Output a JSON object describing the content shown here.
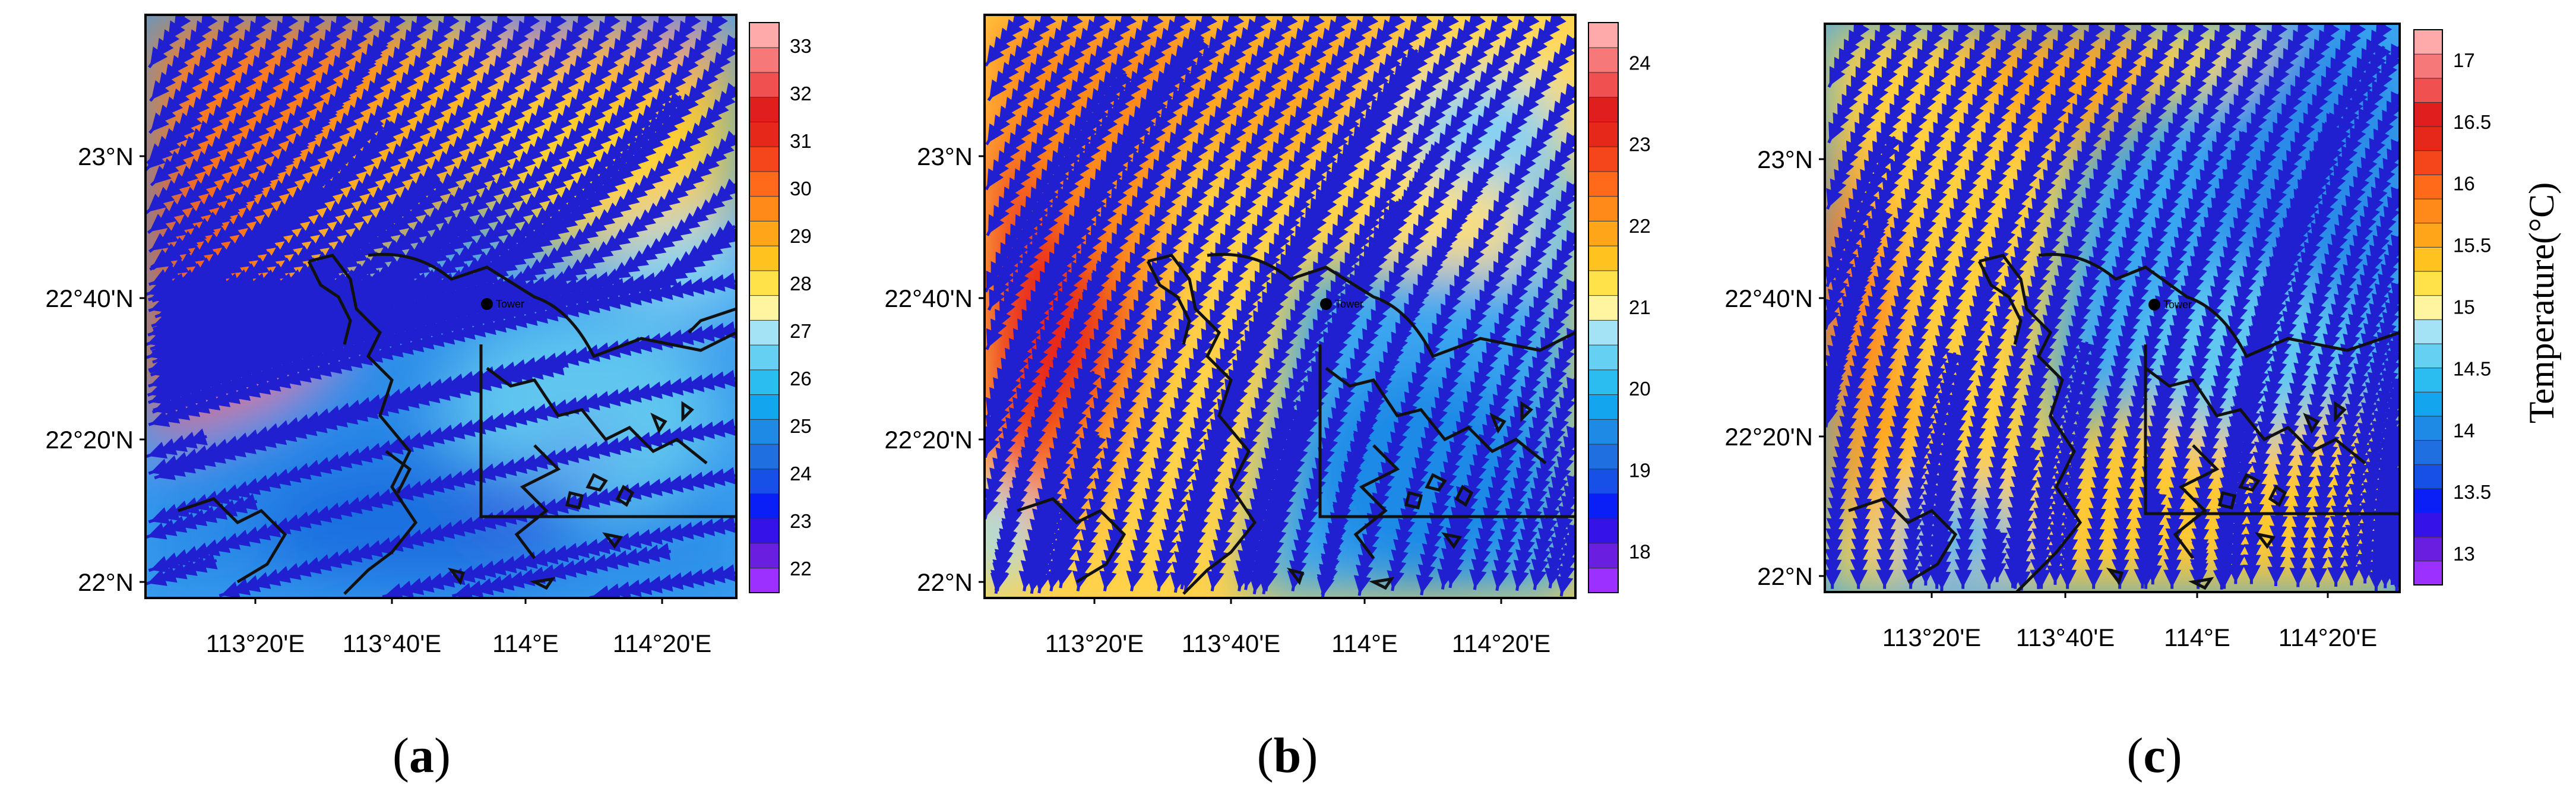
{
  "colorbar_title": "Temperature(°C)",
  "colormap": [
    "#9b30ff",
    "#6a1fe0",
    "#3512e8",
    "#0a1ff5",
    "#1650e6",
    "#1f6fe0",
    "#1f8ae6",
    "#13a6ef",
    "#2bbdf0",
    "#66d0f2",
    "#a3e3f5",
    "#fff5a0",
    "#ffe24a",
    "#ffc21f",
    "#ffa51a",
    "#ff8a1a",
    "#ff6a1a",
    "#f5451a",
    "#e6281a",
    "#e01e1e",
    "#f05050",
    "#f77878",
    "#ffaaaa"
  ],
  "panels": [
    {
      "label": "(a)",
      "letter": "a",
      "tower_label": "Tower",
      "lon_ticks": [
        "113°20'E",
        "113°40'E",
        "114°E",
        "114°20'E"
      ],
      "lat_ticks": [
        "23°N",
        "22°40'N",
        "22°20'N",
        "22°N"
      ],
      "colorbar_ticks": [
        "33",
        "32",
        "31",
        "30",
        "29",
        "28",
        "27",
        "26",
        "25",
        "24",
        "23",
        "22"
      ],
      "colorbar_range": [
        21.5,
        33.5
      ],
      "field": "a"
    },
    {
      "label": "(b)",
      "letter": "b",
      "tower_label": "Tower",
      "lon_ticks": [
        "113°20'E",
        "113°40'E",
        "114°E",
        "114°20'E"
      ],
      "lat_ticks": [
        "23°N",
        "22°40'N",
        "22°20'N",
        "22°N"
      ],
      "colorbar_ticks": [
        "24",
        "23",
        "22",
        "21",
        "20",
        "19",
        "18"
      ],
      "colorbar_range": [
        17.5,
        24.5
      ],
      "field": "b"
    },
    {
      "label": "(c)",
      "letter": "c",
      "tower_label": "Tower",
      "lon_ticks": [
        "113°20'E",
        "113°40'E",
        "114°E",
        "114°20'E"
      ],
      "lat_ticks": [
        "23°N",
        "22°40'N",
        "22°20'N",
        "22°N"
      ],
      "colorbar_ticks": [
        "17",
        "16.5",
        "16",
        "15.5",
        "15",
        "14.5",
        "14",
        "13.5",
        "13"
      ],
      "colorbar_range": [
        12.75,
        17.25
      ],
      "field": "c"
    }
  ]
}
